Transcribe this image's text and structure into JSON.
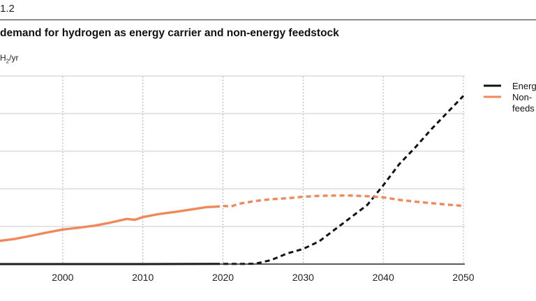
{
  "header": {
    "figure_label": "1.2",
    "title": "demand for hydrogen as energy carrier and non-energy feedstock",
    "unit_prefix": "H",
    "unit_sub": "2",
    "unit_suffix": "/yr"
  },
  "colors": {
    "energy": "#111111",
    "non_energy": "#f0885a",
    "grid": "#c8c8c8",
    "axis": "#222222"
  },
  "chart_data": {
    "type": "line",
    "title": "demand for hydrogen as energy carrier and non-energy feedstock",
    "ylabel": "H2/yr",
    "xlim": [
      1992,
      2050
    ],
    "x_ticks": [
      2000,
      2010,
      2020,
      2030,
      2040,
      2050
    ],
    "x_tick_labels": [
      "2000",
      "2010",
      "2020",
      "2030",
      "2040",
      "2050"
    ],
    "y_gridlines": 5,
    "historical_until": 2019,
    "grid": true,
    "legend_position": "right",
    "legend": [
      {
        "key": "energy",
        "lines": [
          "Energ"
        ]
      },
      {
        "key": "non_energy",
        "lines": [
          "Non-",
          "feeds"
        ]
      }
    ],
    "series": [
      {
        "key": "energy",
        "x": [
          1992,
          2000,
          2010,
          2019,
          2020,
          2022,
          2024,
          2026,
          2028,
          2030,
          2032,
          2034,
          2036,
          2038,
          2040,
          2042,
          2044,
          2046,
          2048,
          2050
        ],
        "y": [
          0,
          0,
          0,
          0.05,
          0.05,
          0.05,
          0.1,
          1.3,
          3.5,
          5.0,
          7.5,
          11.5,
          15.5,
          19.5,
          26.0,
          33.0,
          38.5,
          44.5,
          50.0,
          55.5
        ]
      },
      {
        "key": "non_energy",
        "x": [
          1992,
          1994,
          1996,
          1998,
          2000,
          2002,
          2004,
          2006,
          2008,
          2009,
          2010,
          2012,
          2014,
          2016,
          2018,
          2019,
          2020,
          2021,
          2022,
          2024,
          2026,
          2028,
          2030,
          2032,
          2034,
          2036,
          2038,
          2040,
          2042,
          2044,
          2046,
          2048,
          2050
        ],
        "y": [
          7.6,
          8.3,
          9.3,
          10.4,
          11.4,
          12.0,
          12.7,
          13.7,
          14.9,
          14.6,
          15.5,
          16.5,
          17.2,
          18.0,
          18.8,
          18.9,
          19.2,
          19.0,
          19.9,
          20.8,
          21.4,
          21.7,
          22.2,
          22.5,
          22.6,
          22.6,
          22.4,
          22.0,
          21.2,
          20.6,
          20.1,
          19.6,
          19.2
        ]
      }
    ]
  }
}
